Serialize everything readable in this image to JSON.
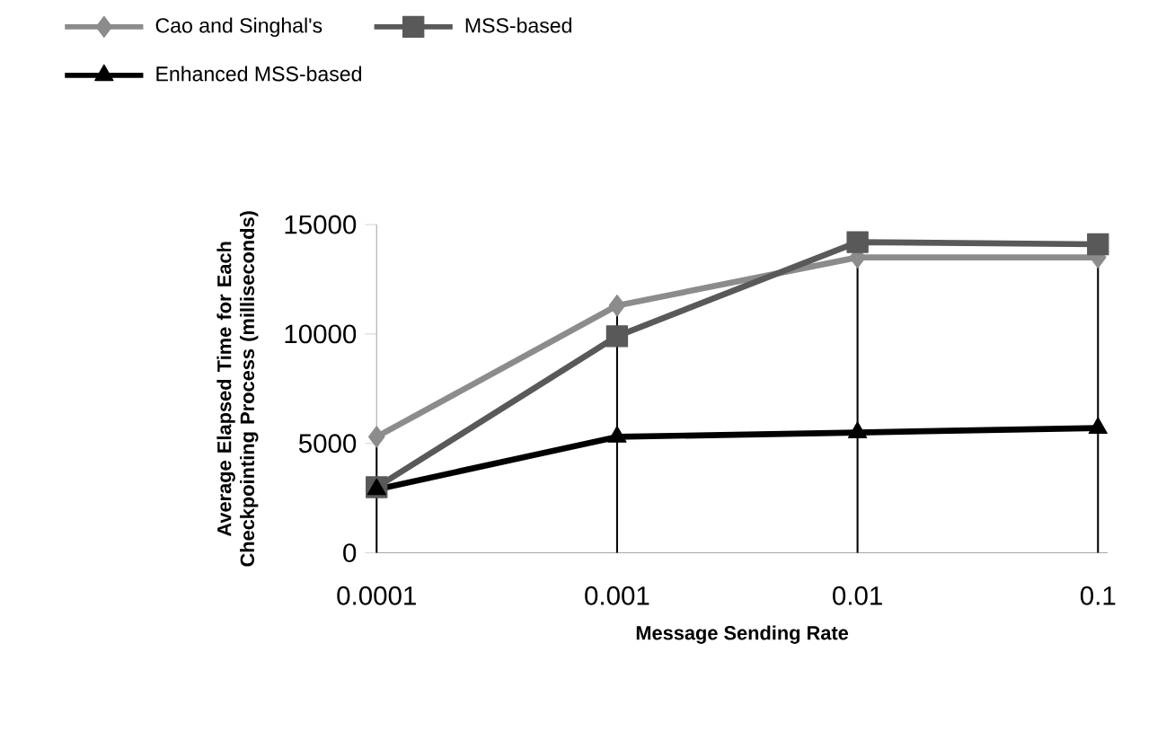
{
  "chart_data": {
    "type": "line",
    "xlabel": "Message Sending Rate",
    "ylabel": "Average Elapsed Time for Each Checkpointing Process (milliseconds)",
    "categories": [
      "0.0001",
      "0.001",
      "0.01",
      "0.1"
    ],
    "series": [
      {
        "name": "Cao and Singhal's",
        "color": "#8c8c8c",
        "marker": "diamond",
        "values": [
          5300,
          11300,
          13500,
          13500
        ]
      },
      {
        "name": "MSS-based",
        "color": "#595959",
        "marker": "square",
        "values": [
          3000,
          9900,
          14200,
          14100
        ]
      },
      {
        "name": "Enhanced MSS-based",
        "color": "#000000",
        "marker": "triangle",
        "values": [
          2900,
          5300,
          5500,
          5700
        ]
      }
    ],
    "ylim": [
      0,
      15000
    ],
    "yticks": [
      0,
      5000,
      10000,
      15000
    ],
    "grid": false,
    "legend": "top",
    "line_style": "solid",
    "ref_lines": [
      {
        "axis": "x",
        "value": "0.0001",
        "color": "#000000"
      },
      {
        "axis": "x",
        "value": "0.001",
        "color": "#000000"
      },
      {
        "axis": "x",
        "value": "0.01",
        "color": "#000000"
      },
      {
        "axis": "x",
        "value": "0.1",
        "color": "#000000"
      }
    ]
  }
}
